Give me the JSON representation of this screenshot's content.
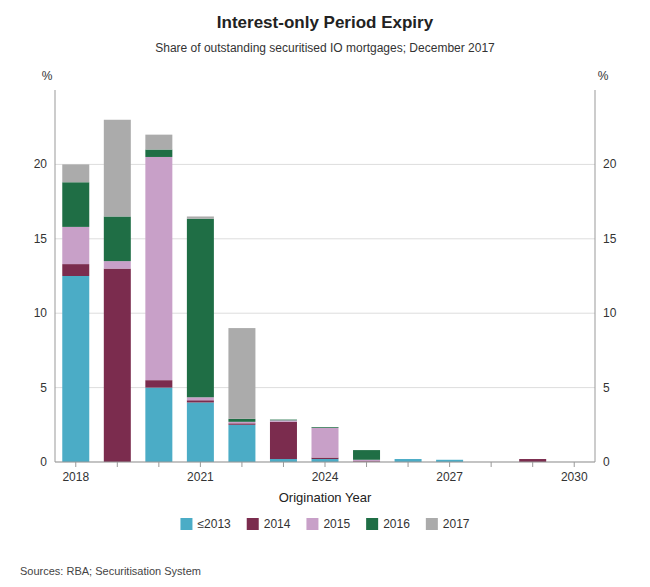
{
  "chart_data": {
    "type": "bar",
    "stacked": true,
    "title": "Interest-only Period Expiry",
    "subtitle": "Share of outstanding securitised IO mortgages; December 2017",
    "xlabel": "Origination Year",
    "ylabel": "%",
    "y2label": "%",
    "source": "Sources:  RBA; Securitisation System",
    "categories": [
      "2018",
      null,
      null,
      "2021",
      null,
      null,
      "2024",
      null,
      null,
      "2027",
      null,
      null,
      "2030"
    ],
    "series": [
      {
        "name": "≤2013",
        "color": "#4BACC6",
        "values": [
          12.5,
          0.0,
          5.0,
          4.0,
          2.5,
          0.2,
          0.2,
          0.0,
          0.2,
          0.15,
          0.0,
          0.0,
          0.0
        ]
      },
      {
        "name": "2014",
        "color": "#7B2C4E",
        "values": [
          0.8,
          13.0,
          0.5,
          0.15,
          0.1,
          2.5,
          0.1,
          0.05,
          0.0,
          0.0,
          0.0,
          0.2,
          0.0
        ]
      },
      {
        "name": "2015",
        "color": "#C8A0C8",
        "values": [
          2.5,
          0.5,
          15.0,
          0.2,
          0.1,
          0.1,
          2.0,
          0.1,
          0.0,
          0.0,
          0.0,
          0.0,
          0.0
        ]
      },
      {
        "name": "2016",
        "color": "#1F6E45",
        "values": [
          3.0,
          3.0,
          0.5,
          12.0,
          0.2,
          0.05,
          0.05,
          0.65,
          0.0,
          0.0,
          0.0,
          0.0,
          0.0
        ]
      },
      {
        "name": "2017",
        "color": "#ABABAB",
        "values": [
          1.2,
          6.5,
          1.0,
          0.15,
          6.1,
          0.0,
          0.0,
          0.0,
          0.0,
          0.0,
          0.0,
          0.0,
          0.0
        ]
      }
    ],
    "ylim": [
      0,
      25
    ],
    "yticks": [
      0,
      5,
      10,
      15,
      20
    ],
    "y2lim": [
      0,
      25
    ],
    "y2ticks": [
      0,
      5,
      10,
      15,
      20
    ],
    "grid": true,
    "legend": "bottom"
  }
}
